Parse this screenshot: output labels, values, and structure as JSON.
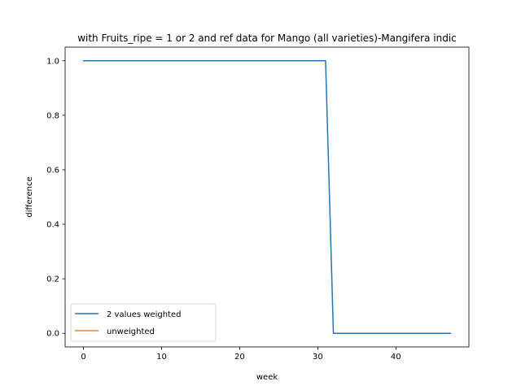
{
  "chart_data": {
    "type": "line",
    "title": "with Fruits_ripe = 1 or 2 and ref data for Mango (all varieties)-Mangifera indic",
    "xlabel": "week",
    "ylabel": "difference",
    "xlim": [
      -2.35,
      49.35
    ],
    "ylim": [
      -0.05,
      1.05
    ],
    "xticks": [
      0,
      10,
      20,
      30,
      40
    ],
    "yticks": [
      0.0,
      0.2,
      0.4,
      0.6,
      0.8,
      1.0
    ],
    "ytick_labels": [
      "0.0",
      "0.2",
      "0.4",
      "0.6",
      "0.8",
      "1.0"
    ],
    "grid": false,
    "legend": "lower-left",
    "series": [
      {
        "name": "2 values weighted",
        "color": "#1f77b4",
        "x": [
          0,
          1,
          2,
          3,
          4,
          5,
          6,
          7,
          8,
          9,
          10,
          11,
          12,
          13,
          14,
          15,
          16,
          17,
          18,
          19,
          20,
          21,
          22,
          23,
          24,
          25,
          26,
          27,
          28,
          29,
          30,
          31,
          32,
          33,
          34,
          35,
          36,
          37,
          38,
          39,
          40,
          41,
          42,
          43,
          44,
          45,
          46,
          47
        ],
        "values": [
          1,
          1,
          1,
          1,
          1,
          1,
          1,
          1,
          1,
          1,
          1,
          1,
          1,
          1,
          1,
          1,
          1,
          1,
          1,
          1,
          1,
          1,
          1,
          1,
          1,
          1,
          1,
          1,
          1,
          1,
          1,
          1,
          0,
          0,
          0,
          0,
          0,
          0,
          0,
          0,
          0,
          0,
          0,
          0,
          0,
          0,
          0,
          0
        ]
      },
      {
        "name": "unweighted",
        "color": "#ff7f0e",
        "x": [],
        "values": []
      }
    ]
  }
}
